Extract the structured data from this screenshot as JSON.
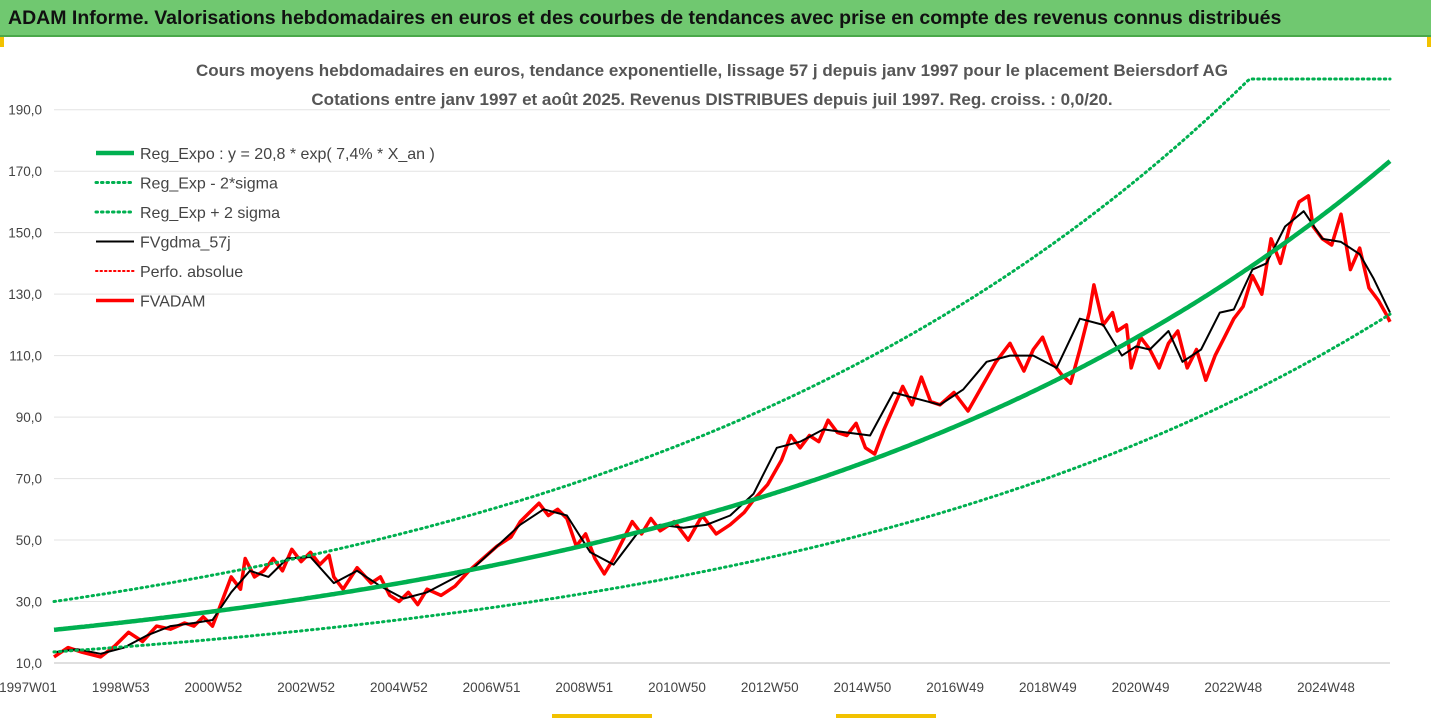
{
  "header": {
    "title": "ADAM Informe. Valorisations hebdomadaires en euros et des courbes de tendances avec prise en compte des revenus connus distribués"
  },
  "colors": {
    "banner": "#70c870",
    "trend": "#00b050",
    "fvgdma": "#000000",
    "fvadam": "#ff0000",
    "accent": "#f2c200"
  },
  "chart_data": {
    "type": "line",
    "title_line1": "Cours moyens hebdomadaires en euros, tendance exponentielle, lissage 57 j depuis janv 1997 pour le placement Beiersdorf AG",
    "title_line2": "Cotations entre janv 1997 et août 2025. Revenus DISTRIBUES depuis juil 1997. Reg. croiss. : 0,0/20.",
    "ylim": [
      10,
      200
    ],
    "y_ticks": [
      "10,0",
      "30,0",
      "50,0",
      "70,0",
      "90,0",
      "110,0",
      "130,0",
      "150,0",
      "170,0",
      "190,0"
    ],
    "x_range": [
      1997.0,
      2025.65
    ],
    "x_ticks": [
      "1997W01",
      "1998W53",
      "2000W52",
      "2002W52",
      "2004W52",
      "2006W51",
      "2008W51",
      "2010W50",
      "2012W50",
      "2014W50",
      "2016W49",
      "2018W49",
      "2020W49",
      "2022W48",
      "2024W48"
    ],
    "grid": "horizontal",
    "legend": "top-left",
    "series": [
      {
        "name": "Reg_Expo : y = 20,8 * exp( 7,4% *  X_an )",
        "style": "solid-green-thick",
        "formula": {
          "a": 20.8,
          "b": 0.074,
          "start_year": 1997.0
        }
      },
      {
        "name": "Reg_Exp - 2*sigma",
        "style": "dotted-green",
        "formula": {
          "a": 13.6,
          "b": 0.077,
          "start_year": 1997.0
        }
      },
      {
        "name": "Reg_Exp + 2 sigma",
        "style": "dotted-green",
        "formula": {
          "a": 30.0,
          "b": 0.074,
          "start_year": 1997.0,
          "cap": 200
        }
      },
      {
        "name": "FVgdma_57j",
        "style": "solid-black",
        "x": [
          1997.0,
          1997.5,
          1998.0,
          1998.5,
          1999.0,
          1999.5,
          2000.0,
          2000.4,
          2000.8,
          2001.2,
          2001.6,
          2002.0,
          2002.5,
          2003.0,
          2003.5,
          2004.0,
          2004.5,
          2005.0,
          2005.5,
          2006.0,
          2006.5,
          2007.0,
          2007.5,
          2008.0,
          2008.5,
          2009.0,
          2009.5,
          2010.0,
          2010.5,
          2011.0,
          2011.5,
          2012.0,
          2012.5,
          2013.0,
          2013.5,
          2014.0,
          2014.5,
          2015.0,
          2015.5,
          2016.0,
          2016.5,
          2017.0,
          2017.5,
          2018.0,
          2018.5,
          2019.0,
          2019.5,
          2019.9,
          2020.2,
          2020.5,
          2020.9,
          2021.2,
          2021.6,
          2022.0,
          2022.3,
          2022.7,
          2023.0,
          2023.4,
          2023.8,
          2024.2,
          2024.6,
          2025.0,
          2025.3,
          2025.65
        ],
        "y": [
          13.5,
          14.5,
          13.0,
          15.0,
          19.0,
          22.0,
          23.0,
          24.0,
          33.0,
          40.0,
          38.0,
          44.0,
          44.5,
          36.0,
          40.0,
          35.0,
          31.0,
          33.0,
          37.0,
          41.0,
          48.0,
          55.0,
          60.0,
          58.0,
          46.0,
          42.0,
          52.0,
          55.0,
          54.0,
          55.0,
          58.0,
          65.0,
          80.0,
          82.0,
          86.0,
          85.0,
          84.0,
          98.0,
          96.0,
          94.0,
          99.0,
          108.0,
          110.0,
          110.0,
          106.0,
          122.0,
          120.0,
          110.0,
          113.0,
          112.0,
          118.0,
          108.0,
          112.0,
          124.0,
          125.0,
          138.0,
          140.0,
          152.0,
          157.0,
          148.0,
          147.0,
          143.0,
          135.0,
          124.0
        ]
      },
      {
        "name": "Perfo. absolue",
        "style": "dotted-red",
        "x": [],
        "y": []
      },
      {
        "name": "FVADAM",
        "style": "solid-red-thick",
        "x": [
          1997.0,
          1997.3,
          1997.6,
          1998.0,
          1998.3,
          1998.6,
          1998.9,
          1999.2,
          1999.5,
          1999.8,
          2000.0,
          2000.2,
          2000.4,
          2000.6,
          2000.8,
          2001.0,
          2001.1,
          2001.3,
          2001.5,
          2001.7,
          2001.9,
          2002.1,
          2002.3,
          2002.5,
          2002.7,
          2002.9,
          2003.0,
          2003.2,
          2003.5,
          2003.8,
          2004.0,
          2004.2,
          2004.4,
          2004.6,
          2004.8,
          2005.0,
          2005.3,
          2005.6,
          2005.9,
          2006.2,
          2006.5,
          2006.8,
          2007.0,
          2007.2,
          2007.4,
          2007.6,
          2007.8,
          2008.0,
          2008.2,
          2008.4,
          2008.6,
          2008.8,
          2009.0,
          2009.2,
          2009.4,
          2009.6,
          2009.8,
          2010.0,
          2010.3,
          2010.6,
          2010.9,
          2011.2,
          2011.5,
          2011.8,
          2012.0,
          2012.3,
          2012.6,
          2012.8,
          2013.0,
          2013.2,
          2013.4,
          2013.6,
          2013.8,
          2014.0,
          2014.2,
          2014.4,
          2014.6,
          2014.8,
          2015.0,
          2015.2,
          2015.4,
          2015.6,
          2015.8,
          2016.0,
          2016.3,
          2016.6,
          2016.9,
          2017.2,
          2017.5,
          2017.8,
          2018.0,
          2018.2,
          2018.4,
          2018.6,
          2018.8,
          2019.0,
          2019.2,
          2019.3,
          2019.5,
          2019.7,
          2019.8,
          2020.0,
          2020.1,
          2020.3,
          2020.5,
          2020.7,
          2020.9,
          2021.1,
          2021.3,
          2021.5,
          2021.7,
          2021.9,
          2022.1,
          2022.3,
          2022.5,
          2022.7,
          2022.9,
          2023.1,
          2023.3,
          2023.5,
          2023.7,
          2023.9,
          2024.0,
          2024.2,
          2024.4,
          2024.6,
          2024.8,
          2025.0,
          2025.2,
          2025.4,
          2025.55,
          2025.65
        ],
        "y": [
          12.0,
          15.0,
          13.5,
          12.0,
          15.5,
          20.0,
          17.0,
          22.0,
          21.0,
          23.0,
          22.0,
          25.0,
          22.0,
          30.0,
          38.0,
          34.0,
          44.0,
          38.0,
          40.0,
          44.0,
          40.0,
          47.0,
          43.0,
          46.0,
          42.0,
          45.0,
          38.0,
          34.0,
          41.0,
          36.0,
          38.0,
          32.0,
          30.0,
          33.0,
          29.0,
          34.0,
          32.0,
          35.0,
          40.0,
          44.0,
          48.0,
          51.0,
          56.0,
          59.0,
          62.0,
          58.0,
          60.0,
          57.0,
          48.0,
          52.0,
          44.0,
          39.0,
          44.0,
          50.0,
          56.0,
          52.0,
          57.0,
          53.0,
          56.0,
          50.0,
          58.0,
          52.0,
          55.0,
          59.0,
          63.0,
          68.0,
          76.0,
          84.0,
          80.0,
          84.0,
          82.0,
          89.0,
          85.0,
          84.0,
          88.0,
          80.0,
          78.0,
          86.0,
          93.0,
          100.0,
          94.0,
          103.0,
          95.0,
          94.0,
          98.0,
          92.0,
          100.0,
          108.0,
          114.0,
          105.0,
          112.0,
          116.0,
          108.0,
          104.0,
          101.0,
          112.0,
          124.0,
          133.0,
          120.0,
          124.0,
          118.0,
          120.0,
          106.0,
          116.0,
          112.0,
          106.0,
          114.0,
          118.0,
          106.0,
          112.0,
          102.0,
          110.0,
          116.0,
          122.0,
          126.0,
          136.0,
          130.0,
          148.0,
          140.0,
          152.0,
          160.0,
          162.0,
          152.0,
          148.0,
          146.0,
          156.0,
          138.0,
          145.0,
          132.0,
          128.0,
          124.0,
          121.0
        ]
      }
    ]
  }
}
